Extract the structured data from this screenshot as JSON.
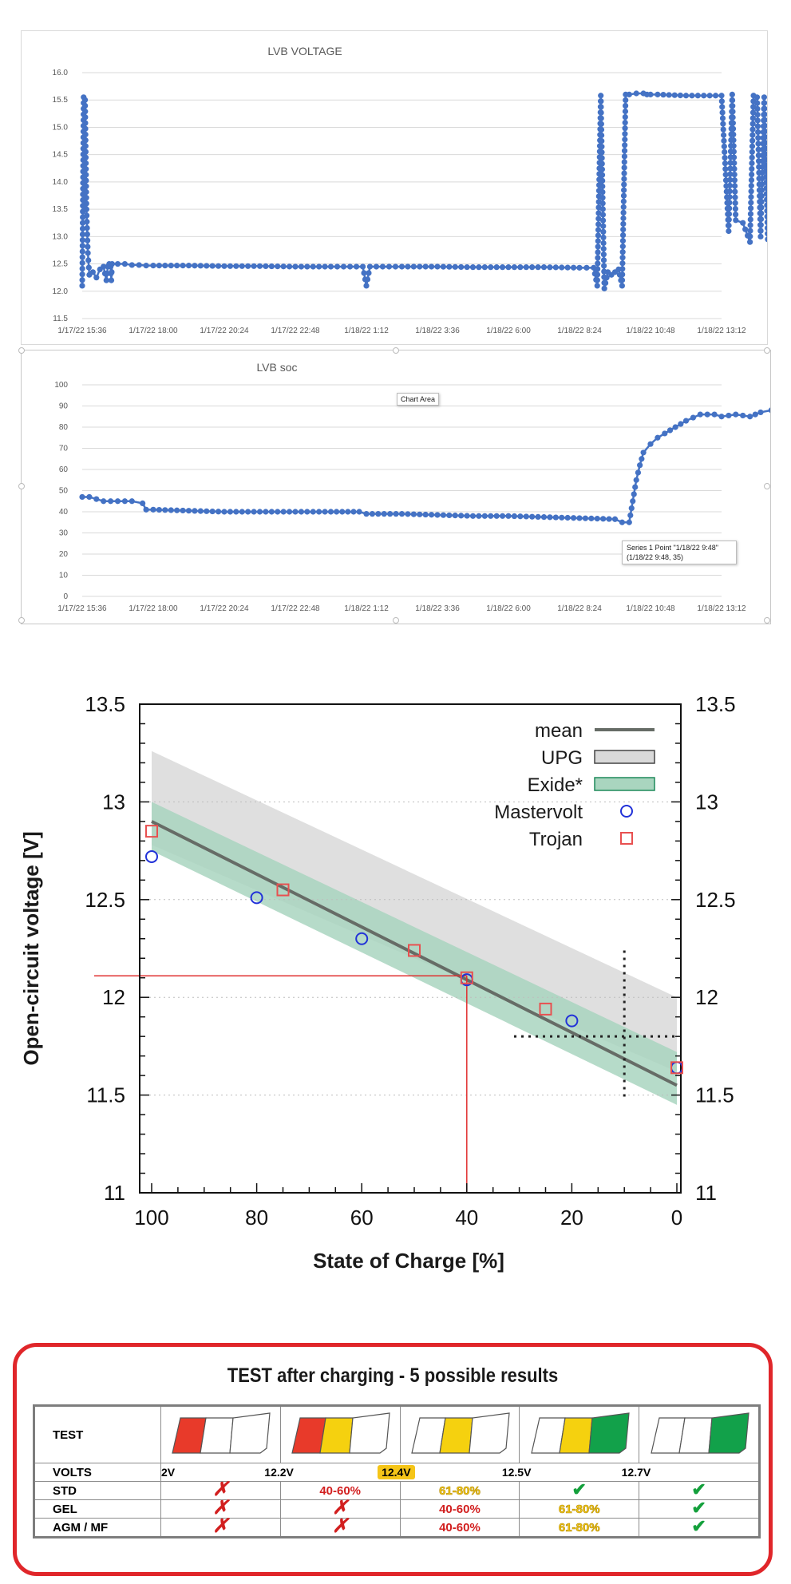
{
  "chart_data": [
    {
      "type": "line",
      "title": "LVB VOLTAGE",
      "x_tick_labels": [
        "1/17/22 15:36",
        "1/17/22 18:00",
        "1/17/22 20:24",
        "1/17/22 22:48",
        "1/18/22 1:12",
        "1/18/22 3:36",
        "1/18/22 6:00",
        "1/18/22 8:24",
        "1/18/22 10:48",
        "1/18/22 13:12"
      ],
      "y_tick_labels": [
        "11.5",
        "12.0",
        "12.5",
        "13.0",
        "13.5",
        "14.0",
        "14.5",
        "15.0",
        "15.5",
        "16.0"
      ],
      "ylim": [
        11.5,
        16.0
      ],
      "grid": true,
      "color": "#4472c4",
      "series": [
        {
          "x_tick_pos": [
            0,
            0.02,
            0.04,
            0.06,
            0.08,
            0.1,
            0.15,
            0.2,
            0.25,
            0.3,
            0.34,
            0.36,
            0.38,
            0.4,
            0.41,
            0.42,
            0.5,
            0.6,
            0.7,
            0.8,
            0.9,
            1.0,
            1.5,
            2.0,
            2.5,
            3.0,
            3.5,
            3.95,
            4.0,
            4.05,
            4.5,
            5.0,
            5.5,
            6.0,
            6.5,
            7.0,
            7.2,
            7.25,
            7.3,
            7.35,
            7.4,
            7.45,
            7.5,
            7.55,
            7.6,
            7.65,
            7.7,
            7.8,
            7.9,
            7.95,
            8.0,
            8.1,
            8.5,
            9.0,
            9.1,
            9.15,
            9.2,
            9.3,
            9.4,
            9.45,
            9.5,
            9.55,
            9.6,
            9.65,
            9.7,
            9.75,
            9.8,
            9.82
          ],
          "values": [
            12.1,
            15.55,
            15.5,
            13.5,
            12.7,
            12.3,
            12.35,
            12.25,
            12.4,
            12.45,
            12.2,
            12.45,
            12.5,
            12.45,
            12.2,
            12.5,
            12.5,
            12.5,
            12.48,
            12.48,
            12.47,
            12.47,
            12.47,
            12.46,
            12.46,
            12.45,
            12.45,
            12.45,
            12.1,
            12.45,
            12.45,
            12.45,
            12.44,
            12.44,
            12.44,
            12.43,
            12.43,
            12.1,
            15.58,
            12.05,
            12.35,
            12.3,
            12.35,
            12.4,
            12.1,
            15.6,
            15.6,
            15.62,
            15.62,
            15.6,
            15.6,
            15.6,
            15.58,
            15.58,
            13.1,
            15.6,
            13.3,
            13.25,
            12.9,
            15.58,
            15.55,
            13.0,
            15.55,
            12.95,
            15.52,
            12.7,
            15.5,
            12.8
          ]
        }
      ]
    },
    {
      "type": "line",
      "title": "LVB soc",
      "x_tick_labels": [
        "1/17/22 15:36",
        "1/17/22 18:00",
        "1/17/22 20:24",
        "1/17/22 22:48",
        "1/18/22 1:12",
        "1/18/22 3:36",
        "1/18/22 6:00",
        "1/18/22 8:24",
        "1/18/22 10:48",
        "1/18/22 13:12"
      ],
      "y_tick_labels": [
        "0",
        "10",
        "20",
        "30",
        "40",
        "50",
        "60",
        "70",
        "80",
        "90",
        "100"
      ],
      "ylim": [
        0,
        100
      ],
      "grid": true,
      "color": "#4472c4",
      "annotations": [
        "Chart Area",
        "Series 1 Point \"1/18/22 9:48\"",
        "(1/18/22 9:48, 35)"
      ],
      "series": [
        {
          "x_tick_pos": [
            0,
            0.1,
            0.2,
            0.3,
            0.5,
            0.7,
            0.85,
            0.9,
            1.0,
            1.5,
            2.0,
            2.5,
            3.0,
            3.5,
            3.9,
            4.0,
            4.5,
            5.0,
            5.5,
            6.0,
            6.5,
            7.0,
            7.5,
            7.6,
            7.7,
            7.75,
            7.8,
            7.85,
            7.9,
            8.0,
            8.1,
            8.2,
            8.35,
            8.5,
            8.7,
            8.9,
            9.0,
            9.2,
            9.4,
            9.55,
            9.7,
            9.8,
            9.95
          ],
          "values": [
            47,
            47,
            46,
            45,
            45,
            45,
            44,
            41,
            41,
            40.5,
            40,
            40,
            40,
            40,
            40,
            39,
            39,
            38.5,
            38,
            38,
            37.5,
            37,
            36.5,
            35,
            35,
            45,
            55,
            62,
            68,
            72,
            75,
            77,
            80,
            83,
            86,
            86,
            85,
            86,
            85,
            87,
            88,
            87,
            86
          ]
        }
      ]
    },
    {
      "type": "line",
      "xlabel": "State of Charge [%]",
      "ylabel": "Open-circuit voltage [V]",
      "xlim": [
        100,
        0
      ],
      "ylim": [
        11,
        13.5
      ],
      "x_tick_labels": [
        "100",
        "80",
        "60",
        "40",
        "20",
        "0"
      ],
      "y_tick_labels": [
        "11",
        "11.5",
        "12",
        "12.5",
        "13",
        "13.5"
      ],
      "legend": [
        "mean",
        "UPG",
        "Exide*",
        "Mastervolt",
        "Trojan"
      ],
      "legend_position": "top-right",
      "series": [
        {
          "name": "mean",
          "x": [
            100,
            0
          ],
          "values": [
            12.9,
            11.55
          ],
          "color": "#666c66"
        },
        {
          "name": "UPG",
          "x": [
            100,
            0
          ],
          "upper": [
            13.26,
            12.0
          ],
          "lower": [
            12.78,
            11.62
          ],
          "color": "#d9d9d9"
        },
        {
          "name": "Exide*",
          "x": [
            100,
            0
          ],
          "upper": [
            13.0,
            11.72
          ],
          "lower": [
            12.75,
            11.45
          ],
          "color": "#a9d5bf"
        },
        {
          "name": "Mastervolt",
          "x": [
            100,
            80,
            60,
            40,
            20,
            0
          ],
          "values": [
            12.72,
            12.51,
            12.3,
            12.09,
            11.88,
            11.64
          ],
          "color": "#2232d8"
        },
        {
          "name": "Trojan",
          "x": [
            100,
            75,
            50,
            40,
            25,
            0
          ],
          "values": [
            12.85,
            12.55,
            12.24,
            12.1,
            11.94,
            11.64
          ],
          "color": "#e85050"
        }
      ],
      "reference_lines": {
        "red_horizontal_y": 12.11,
        "red_vertical_x": 40,
        "dotted_vertical_x": 10,
        "dotted_horizontal_y": 11.8
      }
    }
  ],
  "test_table": {
    "title": "TEST after charging - 5 possible results",
    "rows": [
      {
        "label": "TEST"
      },
      {
        "label": "VOLTS",
        "values": [
          "2V",
          "12.2V",
          "12.4V",
          "12.5V",
          "12.7V"
        ]
      },
      {
        "label": "STD",
        "cells": [
          "x",
          "40-60%",
          "61-80%",
          "check",
          "check"
        ]
      },
      {
        "label": "GEL",
        "cells": [
          "x",
          "x",
          "40-60%",
          "61-80%",
          "check"
        ]
      },
      {
        "label": "AGM / MF",
        "cells": [
          "x",
          "x",
          "40-60%",
          "61-80%",
          "check"
        ]
      }
    ],
    "colors": {
      "red": "#e83a2a",
      "yellow": "#f5d10f",
      "green": "#12a14a"
    }
  }
}
